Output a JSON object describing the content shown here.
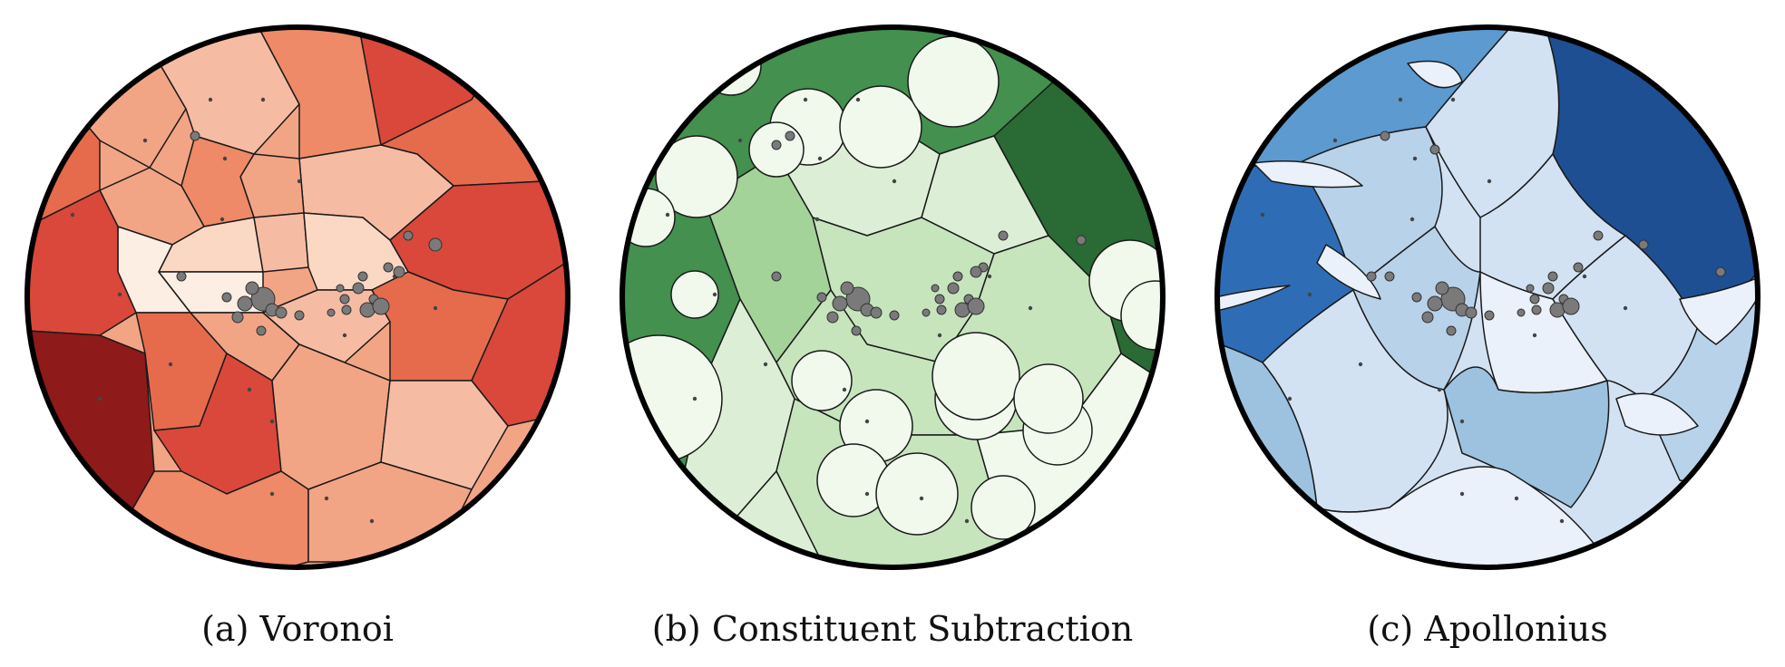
{
  "figure": {
    "panels": [
      {
        "caption": "(a) Voronoi",
        "palette": [
          "#fdeee4",
          "#fbd8c4",
          "#f6bca3",
          "#f2a585",
          "#ee8a67",
          "#e66b4d",
          "#d9483a",
          "#c22f2a",
          "#8e1a1a"
        ],
        "cells": [
          {
            "shade": 3
          },
          {
            "shade": 2
          },
          {
            "shade": 4
          },
          {
            "shade": 6
          },
          {
            "shade": 5
          },
          {
            "shade": 2
          },
          {
            "shade": 3
          },
          {
            "shade": 4
          },
          {
            "shade": 3
          },
          {
            "shade": 1
          },
          {
            "shade": 2
          },
          {
            "shade": 6
          },
          {
            "shade": 5
          },
          {
            "shade": 0
          },
          {
            "shade": 1
          },
          {
            "shade": 0
          },
          {
            "shade": 6
          },
          {
            "shade": 8
          },
          {
            "shade": 5
          },
          {
            "shade": 3
          },
          {
            "shade": 2
          },
          {
            "shade": 5
          },
          {
            "shade": 6
          },
          {
            "shade": 6
          },
          {
            "shade": 3
          },
          {
            "shade": 2
          },
          {
            "shade": 4
          },
          {
            "shade": 3
          }
        ]
      },
      {
        "caption": "(b) Constituent Subtraction",
        "palette": [
          "#f1f9ed",
          "#dcefd6",
          "#c6e5bd",
          "#a4d39a",
          "#6fb56a",
          "#43904f",
          "#2a6a34"
        ],
        "cells": [
          {
            "shade": 5
          },
          {
            "shade": 6
          },
          {
            "shade": 5
          },
          {
            "shade": 1
          },
          {
            "shade": 1
          },
          {
            "shade": 2
          },
          {
            "shade": 3
          },
          {
            "shade": 2
          },
          {
            "shade": 1
          },
          {
            "shade": 0
          },
          {
            "shade": 2
          },
          {
            "shade": 1
          },
          {
            "shade": 0
          },
          {
            "shade": 3
          }
        ]
      },
      {
        "caption": "(c) Apollonius",
        "palette": [
          "#eaf1fa",
          "#d3e2f3",
          "#b8d2ea",
          "#9cc2e0",
          "#5c9ad0",
          "#2e6db5",
          "#1e4f93"
        ],
        "cells": [
          {
            "shade": 4
          },
          {
            "shade": 6
          },
          {
            "shade": 5
          },
          {
            "shade": 3
          },
          {
            "shade": 2
          },
          {
            "shade": 1
          },
          {
            "shade": 1
          },
          {
            "shade": 2
          },
          {
            "shade": 0
          },
          {
            "shade": 1
          },
          {
            "shade": 3
          },
          {
            "shade": 1
          },
          {
            "shade": 2
          },
          {
            "shade": 0
          }
        ]
      }
    ],
    "colors": {
      "outline": "#000000",
      "particle": "#7a7a7a",
      "edge": "#1a1a1a"
    }
  }
}
